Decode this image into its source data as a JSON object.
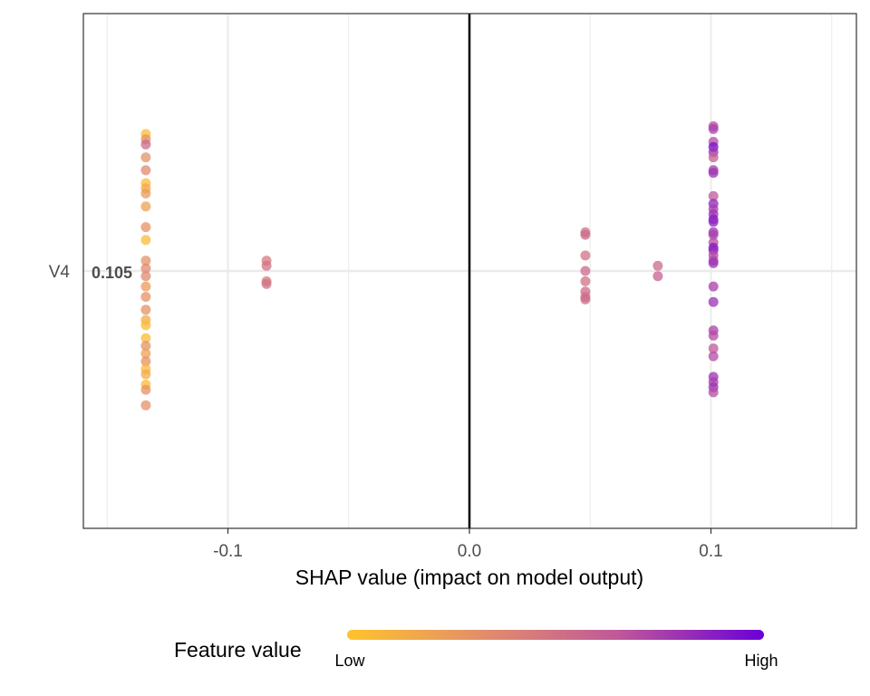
{
  "chart_data": {
    "type": "scatter",
    "title": "",
    "xlabel": "SHAP value (impact on model output)",
    "ylabel": "",
    "xlim": [
      -0.16,
      0.16
    ],
    "x_ticks": [
      -0.1,
      0.0,
      0.1
    ],
    "x_tick_labels": [
      "-0.1",
      "0.0",
      "0.1"
    ],
    "grid": true,
    "zero_line": true,
    "features": [
      {
        "name": "V4",
        "mean_abs_shap": "0.105"
      }
    ],
    "points": [
      {
        "x": -0.134,
        "y": 0.53,
        "v": 0.05
      },
      {
        "x": -0.134,
        "y": 0.51,
        "v": 0.3
      },
      {
        "x": -0.134,
        "y": 0.49,
        "v": 0.55
      },
      {
        "x": -0.134,
        "y": 0.44,
        "v": 0.3
      },
      {
        "x": -0.134,
        "y": 0.39,
        "v": 0.35
      },
      {
        "x": -0.134,
        "y": 0.34,
        "v": 0.05
      },
      {
        "x": -0.134,
        "y": 0.32,
        "v": 0.15
      },
      {
        "x": -0.134,
        "y": 0.3,
        "v": 0.25
      },
      {
        "x": -0.134,
        "y": 0.25,
        "v": 0.2
      },
      {
        "x": -0.134,
        "y": 0.17,
        "v": 0.3
      },
      {
        "x": -0.134,
        "y": 0.12,
        "v": 0.05
      },
      {
        "x": -0.134,
        "y": 0.04,
        "v": 0.3
      },
      {
        "x": -0.134,
        "y": 0.01,
        "v": 0.35
      },
      {
        "x": -0.134,
        "y": -0.02,
        "v": 0.35
      },
      {
        "x": -0.134,
        "y": -0.06,
        "v": 0.25
      },
      {
        "x": -0.134,
        "y": -0.1,
        "v": 0.3
      },
      {
        "x": -0.134,
        "y": -0.15,
        "v": 0.3
      },
      {
        "x": -0.134,
        "y": -0.19,
        "v": 0.15
      },
      {
        "x": -0.134,
        "y": -0.21,
        "v": 0.05
      },
      {
        "x": -0.134,
        "y": -0.26,
        "v": 0.05
      },
      {
        "x": -0.134,
        "y": -0.29,
        "v": 0.3
      },
      {
        "x": -0.134,
        "y": -0.32,
        "v": 0.2
      },
      {
        "x": -0.134,
        "y": -0.35,
        "v": 0.3
      },
      {
        "x": -0.134,
        "y": -0.38,
        "v": 0.05
      },
      {
        "x": -0.134,
        "y": -0.4,
        "v": 0.15
      },
      {
        "x": -0.134,
        "y": -0.44,
        "v": 0.05
      },
      {
        "x": -0.134,
        "y": -0.46,
        "v": 0.3
      },
      {
        "x": -0.134,
        "y": -0.52,
        "v": 0.3
      },
      {
        "x": -0.084,
        "y": 0.04,
        "v": 0.45
      },
      {
        "x": -0.084,
        "y": 0.02,
        "v": 0.5
      },
      {
        "x": -0.084,
        "y": -0.04,
        "v": 0.45
      },
      {
        "x": -0.084,
        "y": -0.05,
        "v": 0.5
      },
      {
        "x": 0.048,
        "y": 0.15,
        "v": 0.5
      },
      {
        "x": 0.048,
        "y": 0.14,
        "v": 0.55
      },
      {
        "x": 0.048,
        "y": 0.06,
        "v": 0.5
      },
      {
        "x": 0.048,
        "y": 0.0,
        "v": 0.55
      },
      {
        "x": 0.048,
        "y": -0.04,
        "v": 0.5
      },
      {
        "x": 0.048,
        "y": -0.08,
        "v": 0.55
      },
      {
        "x": 0.048,
        "y": -0.1,
        "v": 0.5
      },
      {
        "x": 0.048,
        "y": -0.11,
        "v": 0.55
      },
      {
        "x": 0.078,
        "y": 0.02,
        "v": 0.55
      },
      {
        "x": 0.078,
        "y": -0.02,
        "v": 0.6
      },
      {
        "x": 0.101,
        "y": 0.56,
        "v": 0.7
      },
      {
        "x": 0.101,
        "y": 0.55,
        "v": 0.75
      },
      {
        "x": 0.101,
        "y": 0.5,
        "v": 0.7
      },
      {
        "x": 0.101,
        "y": 0.48,
        "v": 0.95
      },
      {
        "x": 0.101,
        "y": 0.46,
        "v": 0.8
      },
      {
        "x": 0.101,
        "y": 0.44,
        "v": 0.6
      },
      {
        "x": 0.101,
        "y": 0.39,
        "v": 0.75
      },
      {
        "x": 0.101,
        "y": 0.38,
        "v": 0.8
      },
      {
        "x": 0.101,
        "y": 0.29,
        "v": 0.65
      },
      {
        "x": 0.101,
        "y": 0.26,
        "v": 0.85
      },
      {
        "x": 0.101,
        "y": 0.24,
        "v": 0.75
      },
      {
        "x": 0.101,
        "y": 0.22,
        "v": 0.8
      },
      {
        "x": 0.101,
        "y": 0.2,
        "v": 0.9
      },
      {
        "x": 0.101,
        "y": 0.19,
        "v": 0.85
      },
      {
        "x": 0.101,
        "y": 0.15,
        "v": 0.8
      },
      {
        "x": 0.101,
        "y": 0.14,
        "v": 0.75
      },
      {
        "x": 0.101,
        "y": 0.11,
        "v": 0.7
      },
      {
        "x": 0.101,
        "y": 0.09,
        "v": 0.9
      },
      {
        "x": 0.101,
        "y": 0.08,
        "v": 0.85
      },
      {
        "x": 0.101,
        "y": 0.06,
        "v": 0.7
      },
      {
        "x": 0.101,
        "y": 0.04,
        "v": 0.75
      },
      {
        "x": 0.101,
        "y": 0.03,
        "v": 0.8
      },
      {
        "x": 0.101,
        "y": -0.06,
        "v": 0.75
      },
      {
        "x": 0.101,
        "y": -0.12,
        "v": 0.8
      },
      {
        "x": 0.101,
        "y": -0.23,
        "v": 0.75
      },
      {
        "x": 0.101,
        "y": -0.25,
        "v": 0.7
      },
      {
        "x": 0.101,
        "y": -0.3,
        "v": 0.65
      },
      {
        "x": 0.101,
        "y": -0.33,
        "v": 0.7
      },
      {
        "x": 0.101,
        "y": -0.41,
        "v": 0.8
      },
      {
        "x": 0.101,
        "y": -0.43,
        "v": 0.75
      },
      {
        "x": 0.101,
        "y": -0.45,
        "v": 0.8
      },
      {
        "x": 0.101,
        "y": -0.47,
        "v": 0.7
      }
    ],
    "legend": {
      "title": "Feature value",
      "low_label": "Low",
      "high_label": "High",
      "position": "bottom",
      "colors": [
        "#FFC32D",
        "#E08A6E",
        "#C0589A",
        "#6B00D7"
      ]
    },
    "point_opacity": 0.75
  }
}
